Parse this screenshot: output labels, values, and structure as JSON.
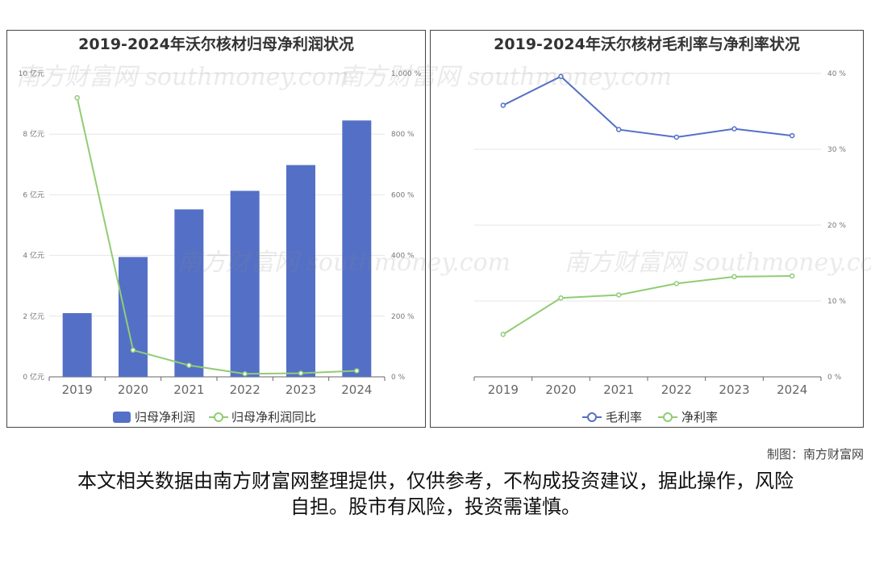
{
  "watermark": "南方财富网 southmoney.com",
  "credit": "制图：南方财富网",
  "disclaimer": "本文相关数据由南方财富网整理提供，仅供参考，不构成投资建议，据此操作，风险自担。股市有风险，投资需谨慎。",
  "colors": {
    "bar": "#5470c6",
    "line_green": "#91cc75",
    "line_blue": "#5470c6"
  },
  "chart_data": [
    {
      "type": "bar",
      "title": "2019-2024年沃尔核材归母净利润状况",
      "categories": [
        "2019",
        "2020",
        "2021",
        "2022",
        "2023",
        "2024"
      ],
      "series": [
        {
          "name": "归母净利润",
          "type": "bar",
          "axis": "left",
          "values": [
            2.1,
            3.95,
            5.52,
            6.13,
            6.98,
            8.45
          ]
        },
        {
          "name": "归母净利润同比",
          "type": "line",
          "axis": "right",
          "values": [
            920,
            88,
            38,
            10,
            12,
            20
          ]
        }
      ],
      "y_left": {
        "min": 0,
        "max": 10,
        "ticks": [
          "0 亿元",
          "2 亿元",
          "4 亿元",
          "6 亿元",
          "8 亿元",
          "10 亿元"
        ]
      },
      "y_right": {
        "min": 0,
        "max": 1000,
        "ticks": [
          "0 %",
          "200 %",
          "400 %",
          "600 %",
          "800 %",
          "1,000 %"
        ]
      },
      "legend": "bottom"
    },
    {
      "type": "line",
      "title": "2019-2024年沃尔核材毛利率与净利率状况",
      "categories": [
        "2019",
        "2020",
        "2021",
        "2022",
        "2023",
        "2024"
      ],
      "series": [
        {
          "name": "毛利率",
          "values": [
            35.8,
            39.6,
            32.6,
            31.6,
            32.7,
            31.8
          ]
        },
        {
          "name": "净利率",
          "values": [
            5.6,
            10.4,
            10.8,
            12.3,
            13.2,
            13.3
          ]
        }
      ],
      "y_right": {
        "min": 0,
        "max": 40,
        "ticks": [
          "0 %",
          "10 %",
          "20 %",
          "30 %",
          "40 %"
        ]
      },
      "legend": "bottom"
    }
  ]
}
